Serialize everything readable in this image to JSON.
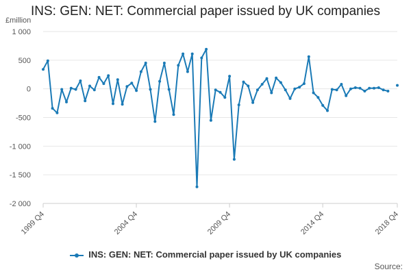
{
  "colors": {
    "series": "#1a7ab6",
    "grid": "#e6e6e6",
    "axis": "#cccccc",
    "text": "#555555"
  },
  "title": "INS: GEN: NET: Commercial paper issued by UK companies",
  "unit_label": "£million",
  "source_label": "Source:",
  "chart_data": {
    "type": "line",
    "title": "INS: GEN: NET: Commercial paper issued by UK companies",
    "ylabel": "£million",
    "xlabel": "",
    "ylim": [
      -2000,
      1000
    ],
    "yticks": [
      1000,
      500,
      0,
      -500,
      -1000,
      -1500,
      -2000
    ],
    "ytick_labels": [
      "1 000",
      "500",
      "0",
      "-500",
      "-1 000",
      "-1 500",
      "-2 000"
    ],
    "x_categories": [
      "1999 Q4",
      "2000 Q1",
      "2000 Q2",
      "2000 Q3",
      "2000 Q4",
      "2001 Q1",
      "2001 Q2",
      "2001 Q3",
      "2001 Q4",
      "2002 Q1",
      "2002 Q2",
      "2002 Q3",
      "2002 Q4",
      "2003 Q1",
      "2003 Q2",
      "2003 Q3",
      "2003 Q4",
      "2004 Q1",
      "2004 Q2",
      "2004 Q3",
      "2004 Q4",
      "2005 Q1",
      "2005 Q2",
      "2005 Q3",
      "2005 Q4",
      "2006 Q1",
      "2006 Q2",
      "2006 Q3",
      "2006 Q4",
      "2007 Q1",
      "2007 Q2",
      "2007 Q3",
      "2007 Q4",
      "2008 Q1",
      "2008 Q2",
      "2008 Q3",
      "2008 Q4",
      "2009 Q1",
      "2009 Q2",
      "2009 Q3",
      "2009 Q4",
      "2010 Q1",
      "2010 Q2",
      "2010 Q3",
      "2010 Q4",
      "2011 Q1",
      "2011 Q2",
      "2011 Q3",
      "2011 Q4",
      "2012 Q1",
      "2012 Q2",
      "2012 Q3",
      "2012 Q4",
      "2013 Q1",
      "2013 Q2",
      "2013 Q3",
      "2013 Q4",
      "2014 Q1",
      "2014 Q2",
      "2014 Q3",
      "2014 Q4",
      "2015 Q1",
      "2015 Q2",
      "2015 Q3",
      "2015 Q4",
      "2016 Q1",
      "2016 Q2",
      "2016 Q3",
      "2016 Q4",
      "2017 Q1",
      "2017 Q2",
      "2017 Q3",
      "2017 Q4",
      "2018 Q1",
      "2018 Q2",
      "2018 Q3",
      "2018 Q4"
    ],
    "x_tick_labels": [
      "1999 Q4",
      "2004 Q4",
      "2009 Q4",
      "2014 Q4",
      "2018 Q4"
    ],
    "grid": true,
    "legend": "bottom",
    "series": [
      {
        "name": "INS: GEN: NET: Commercial paper issued by UK companies",
        "values": [
          340,
          490,
          -340,
          -420,
          -10,
          -230,
          10,
          -10,
          140,
          -210,
          50,
          -20,
          200,
          90,
          230,
          -260,
          160,
          -270,
          40,
          100,
          -30,
          300,
          450,
          -10,
          -570,
          130,
          450,
          -10,
          -450,
          410,
          610,
          300,
          610,
          -1710,
          540,
          690,
          -550,
          -20,
          -60,
          -150,
          220,
          -1230,
          -280,
          120,
          50,
          -240,
          -20,
          80,
          180,
          -70,
          190,
          110,
          -20,
          -170,
          0,
          30,
          90,
          560,
          -70,
          -150,
          -290,
          -380,
          -10,
          -20,
          80,
          -120,
          0,
          20,
          10,
          -40,
          10,
          10,
          20,
          -20,
          -40,
          null,
          60
        ]
      }
    ]
  }
}
